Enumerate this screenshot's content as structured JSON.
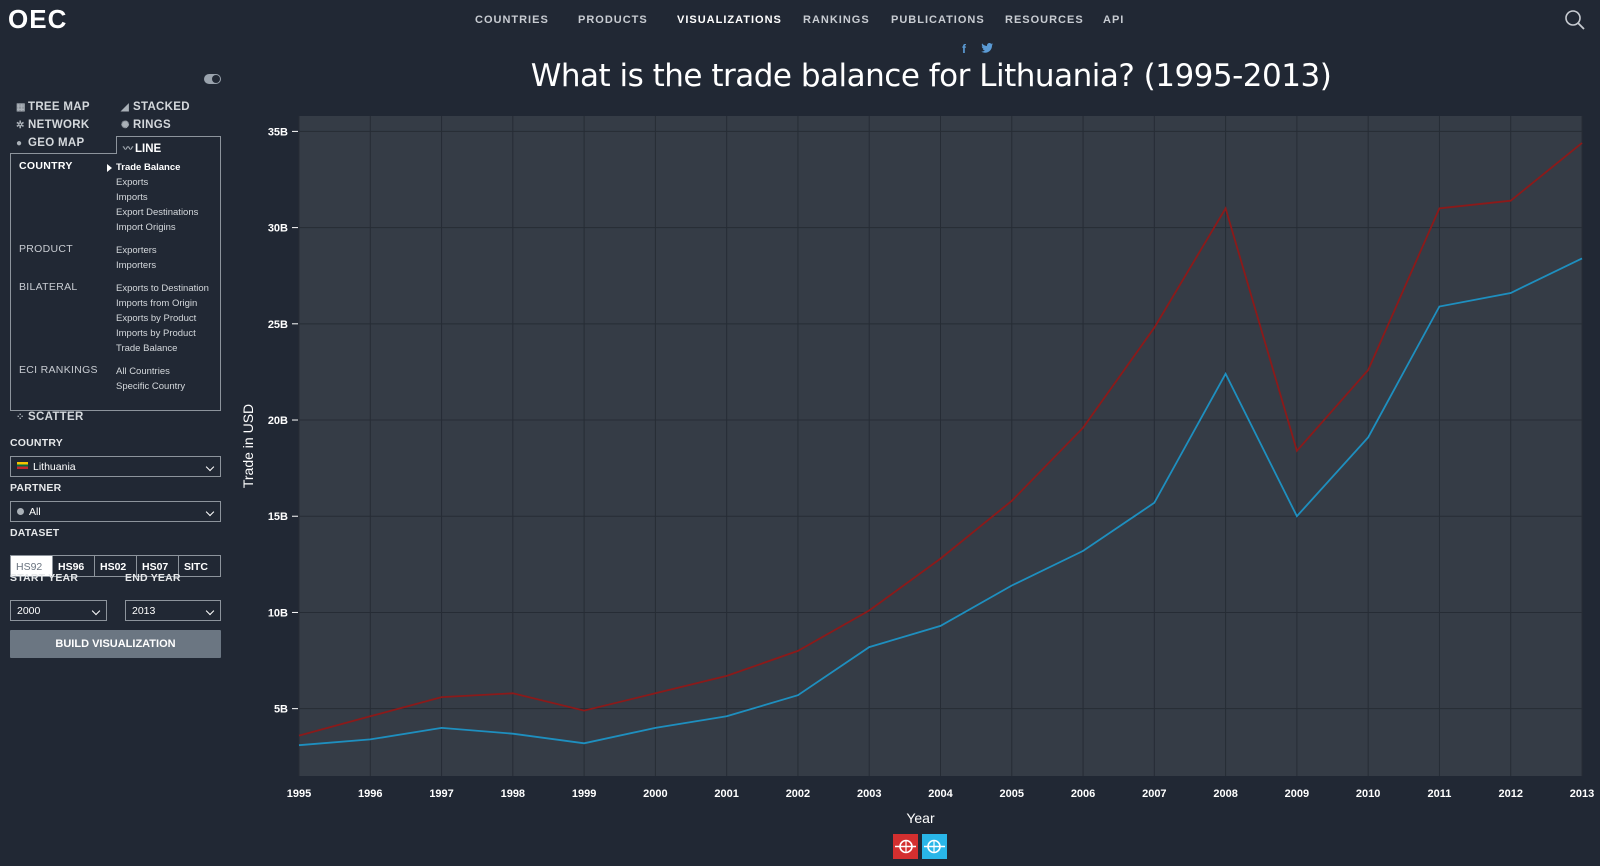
{
  "app": {
    "logo": "OEC"
  },
  "nav": {
    "items": [
      {
        "label": "COUNTRIES",
        "active": false
      },
      {
        "label": "PRODUCTS",
        "active": false
      },
      {
        "label": "VISUALIZATIONS",
        "active": true
      },
      {
        "label": "RANKINGS",
        "active": false
      },
      {
        "label": "PUBLICATIONS",
        "active": false
      },
      {
        "label": "RESOURCES",
        "active": false
      },
      {
        "label": "API",
        "active": false
      }
    ]
  },
  "social": {
    "facebook": "f",
    "twitter": "🐦"
  },
  "page": {
    "title": "What is the trade balance for Lithuania? (1995-2013)"
  },
  "sidebar": {
    "viz_types": [
      {
        "label": "TREE MAP",
        "icon": "tree-map-icon"
      },
      {
        "label": "STACKED",
        "icon": "stacked-icon"
      },
      {
        "label": "NETWORK",
        "icon": "network-icon"
      },
      {
        "label": "RINGS",
        "icon": "rings-icon"
      },
      {
        "label": "GEO MAP",
        "icon": "geo-map-icon"
      },
      {
        "label": "LINE",
        "icon": "line-icon"
      }
    ],
    "line_panel": {
      "categories": [
        {
          "label": "COUNTRY",
          "active": true,
          "items": [
            "Trade Balance",
            "Exports",
            "Imports",
            "Export Destinations",
            "Import Origins"
          ]
        },
        {
          "label": "PRODUCT",
          "active": false,
          "items": [
            "Exporters",
            "Importers"
          ]
        },
        {
          "label": "BILATERAL",
          "active": false,
          "items": [
            "Exports to Destination",
            "Imports from Origin",
            "Exports by Product",
            "Imports by Product",
            "Trade Balance"
          ]
        },
        {
          "label": "ECI RANKINGS",
          "active": false,
          "items": [
            "All Countries",
            "Specific Country"
          ]
        }
      ],
      "active_item": "Trade Balance"
    },
    "scatter_label": "SCATTER",
    "country_label": "COUNTRY",
    "country_value": "Lithuania",
    "partner_label": "PARTNER",
    "partner_value": "All",
    "dataset_label": "DATASET",
    "datasets": [
      "HS92",
      "HS96",
      "HS02",
      "HS07",
      "SITC"
    ],
    "active_dataset": "HS92",
    "start_year_label": "START YEAR",
    "start_year_value": "2000",
    "end_year_label": "END YEAR",
    "end_year_value": "2013",
    "build_label": "BUILD VISUALIZATION"
  },
  "chart_data": {
    "type": "line",
    "title": "What is the trade balance for Lithuania? (1995-2013)",
    "xlabel": "Year",
    "ylabel": "Trade in USD",
    "x": [
      1995,
      1996,
      1997,
      1998,
      1999,
      2000,
      2001,
      2002,
      2003,
      2004,
      2005,
      2006,
      2007,
      2008,
      2009,
      2010,
      2011,
      2012,
      2013
    ],
    "yticks": [
      5,
      10,
      15,
      20,
      25,
      30,
      35
    ],
    "ytick_labels": [
      "5B",
      "10B",
      "15B",
      "20B",
      "25B",
      "30B",
      "35B"
    ],
    "ylim": [
      1.5,
      35.8
    ],
    "grid": true,
    "series": [
      {
        "color": "#8b1a1a",
        "values": [
          3.6,
          4.6,
          5.6,
          5.8,
          4.9,
          5.8,
          6.7,
          8.0,
          10.1,
          12.8,
          15.8,
          19.6,
          24.8,
          31.0,
          18.4,
          22.6,
          31.0,
          31.4,
          34.4
        ]
      },
      {
        "color": "#1e8fbf",
        "values": [
          3.1,
          3.4,
          4.0,
          3.7,
          3.2,
          4.0,
          4.6,
          5.7,
          8.2,
          9.3,
          11.4,
          13.2,
          15.7,
          22.4,
          15.0,
          19.1,
          25.9,
          26.6,
          28.4
        ]
      }
    ],
    "legend": [
      {
        "icon": "exports-icon",
        "color": "#d32f2f"
      },
      {
        "icon": "imports-icon",
        "color": "#29b6e8"
      }
    ]
  }
}
